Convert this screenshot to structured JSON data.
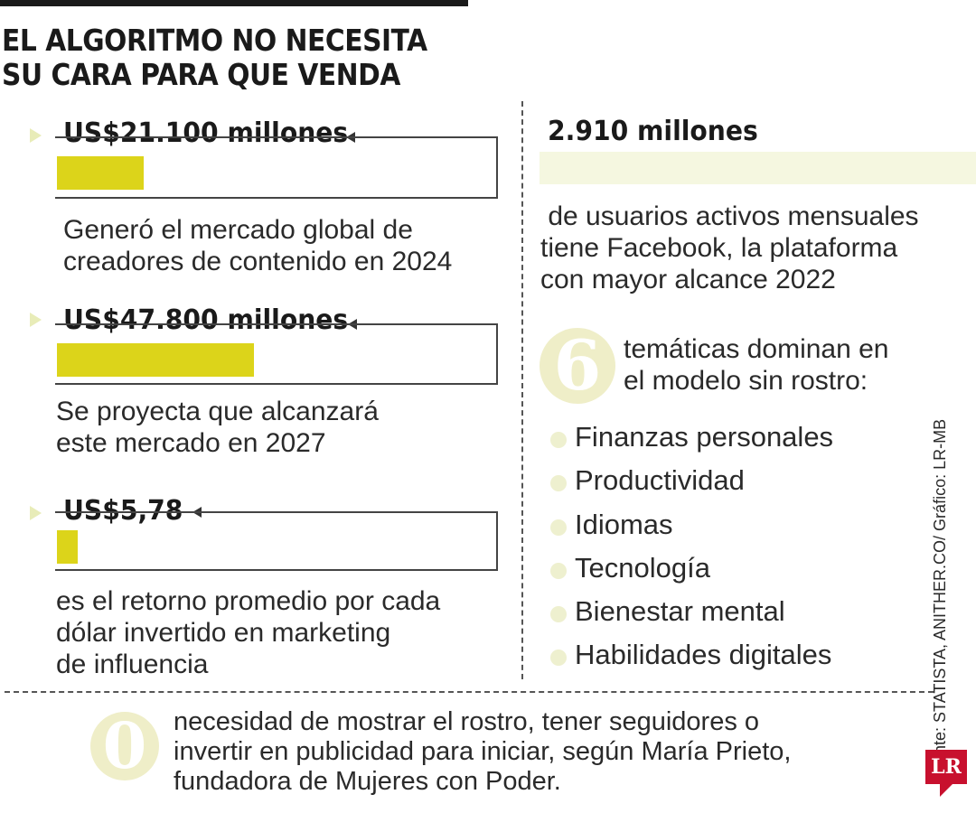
{
  "title": {
    "line1": "EL ALGORITMO NO NECESITA",
    "line2": "SU CARA PARA QUE VENDA"
  },
  "chart_data": {
    "type": "bar",
    "title": "EL ALGORITMO NO NECESITA SU CARA PARA QUE VENDA",
    "categories": [
      "Mercado global de creadores 2024",
      "Proyección mercado 2027",
      "Retorno por dólar en marketing de influencia"
    ],
    "values": [
      21100,
      47800,
      5.78
    ],
    "labels": [
      "US$21.100 millones",
      "US$47.800 millones",
      "US$5,78"
    ],
    "descriptions": [
      [
        "Generó el mercado global de",
        "creadores de contenido en 2024"
      ],
      [
        "Se proyecta que alcanzará",
        "este mercado en 2027"
      ],
      [
        "es el retorno promedio por cada",
        "dólar invertido en marketing",
        "de influencia"
      ]
    ]
  },
  "facebook": {
    "value": "2.910 millones",
    "description": [
      " de usuarios activos mensuales",
      "tiene Facebook, la plataforma",
      "con mayor alcance 2022"
    ]
  },
  "topics": {
    "count": "6",
    "intro": [
      "temáticas dominan en",
      "el modelo sin rostro:"
    ],
    "items": [
      "Finanzas personales",
      "Productividad",
      "Idiomas",
      "Tecnología",
      "Bienestar mental",
      "Habilidades digitales"
    ]
  },
  "footer": {
    "number": "0",
    "text": [
      "necesidad de mostrar el rostro, tener seguidores o",
      "invertir en publicidad para iniciar, según María Prieto,",
      "fundadora de Mujeres con Poder."
    ]
  },
  "source": "Fuente: STATISTA,  ANITHER.CO/ Gráfico: LR-MB",
  "logo": "LR",
  "colors": {
    "bar": "#dcd41a",
    "accent_light": "#efeec8",
    "logo": "#c8102e"
  }
}
